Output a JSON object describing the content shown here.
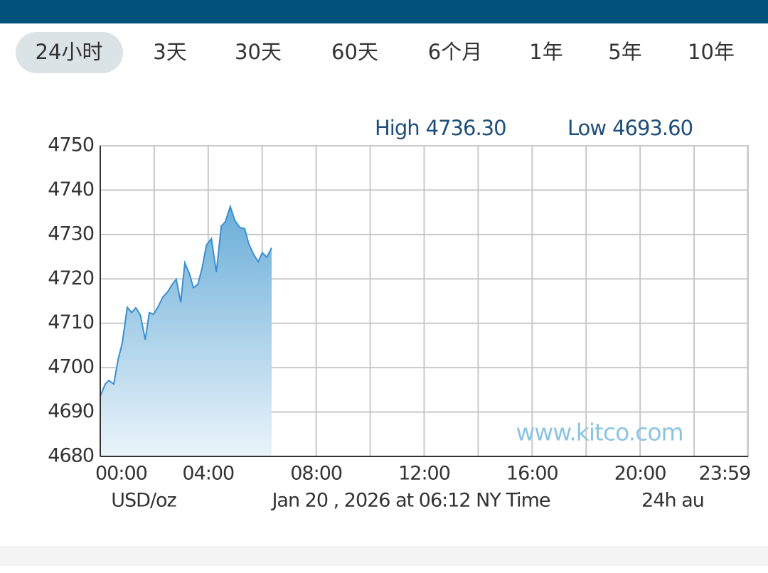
{
  "tabs": [
    "24小时",
    "3天",
    "30天",
    "60天",
    "6个月",
    "1年",
    "5年",
    "10年"
  ],
  "selected_tab": 0,
  "chart_data": {
    "type": "area",
    "annotations": [
      {
        "text": "High",
        "value": {
          "value": 4736.3,
          "label": "4736.30"
        }
      },
      {
        "text": "Low",
        "value": {
          "value": 4693.6,
          "label": "4693.60"
        }
      }
    ],
    "x": [
      0,
      11,
      19,
      30,
      40,
      49,
      60,
      70,
      79,
      89,
      100,
      109,
      118,
      128,
      139,
      150,
      160,
      169,
      179,
      188,
      198,
      207,
      217,
      226,
      236,
      247,
      258,
      269,
      278,
      289,
      299,
      310,
      321,
      330,
      341,
      351,
      360,
      370,
      381
    ],
    "values": [
      4693.6,
      4696.3,
      4697.1,
      4696.3,
      4702,
      4705.6,
      4713.6,
      4712.4,
      4713.5,
      4711.9,
      4706.3,
      4712.4,
      4712,
      4713.6,
      4715.9,
      4717.1,
      4718.8,
      4719.9,
      4714.7,
      4723.6,
      4721.2,
      4718,
      4718.8,
      4722.3,
      4727.6,
      4729.1,
      4721.5,
      4731.9,
      4732.9,
      4736.3,
      4733.2,
      4731.6,
      4731.3,
      4727.9,
      4725.5,
      4723.9,
      4725.9,
      4724.9,
      4727
    ],
    "color": "#3a8fd0",
    "xlim": [
      0,
      1440
    ],
    "xticks": [
      {
        "value": 0,
        "label": "00:00"
      },
      {
        "value": 240,
        "label": "04:00"
      },
      {
        "value": 480,
        "label": "08:00"
      },
      {
        "value": 720,
        "label": "12:00"
      },
      {
        "value": 960,
        "label": "16:00"
      },
      {
        "value": 1200,
        "label": "20:00"
      },
      {
        "value": 1439,
        "label": "23:59"
      }
    ],
    "x_grid": [
      120,
      360,
      600,
      840,
      1080,
      1320
    ],
    "ylim": [
      4680,
      4750
    ],
    "yticks": [
      4680,
      4690,
      4700,
      4710,
      4720,
      4730,
      4740,
      4750
    ],
    "grid": true,
    "unit": "USD/oz",
    "timestamp": "Jan 20 , 2026 at 06:12 NY Time",
    "period": "24h au",
    "watermark": "www.kitco.com"
  }
}
